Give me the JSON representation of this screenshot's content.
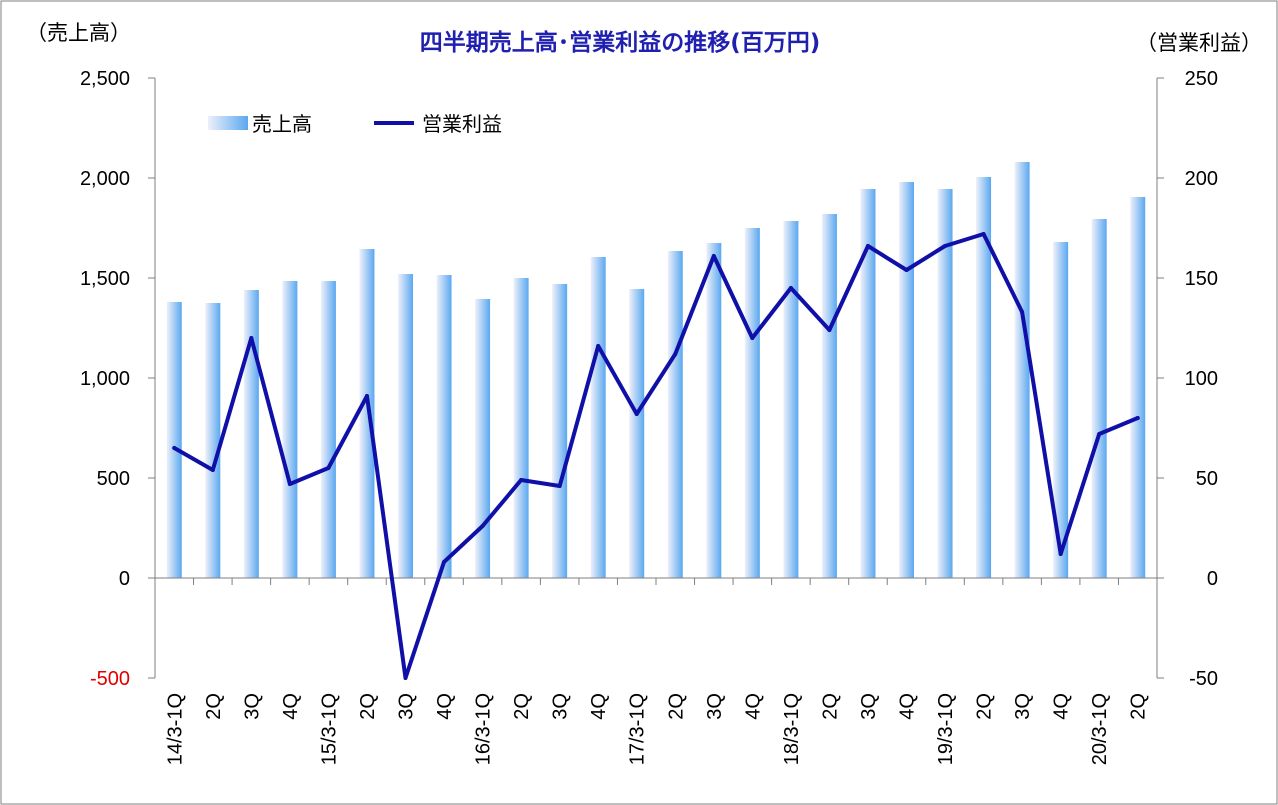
{
  "chart_data": {
    "type": "bar+line",
    "title": "四半期売上高･営業利益の推移(百万円)",
    "left_axis_unit": "（売上高）",
    "right_axis_unit": "（営業利益）",
    "left_axis": {
      "min": -500,
      "max": 2500,
      "step": 500,
      "tick_labels": [
        "-500",
        "0",
        "500",
        "1,000",
        "1,500",
        "2,000",
        "2,500"
      ]
    },
    "right_axis": {
      "min": -50,
      "max": 250,
      "step": 50,
      "tick_labels": [
        "-50",
        "0",
        "50",
        "100",
        "150",
        "200",
        "250"
      ]
    },
    "categories": [
      "14/3-1Q",
      "2Q",
      "3Q",
      "4Q",
      "15/3-1Q",
      "2Q",
      "3Q",
      "4Q",
      "16/3-1Q",
      "2Q",
      "3Q",
      "4Q",
      "17/3-1Q",
      "2Q",
      "3Q",
      "4Q",
      "18/3-1Q",
      "2Q",
      "3Q",
      "4Q",
      "19/3-1Q",
      "2Q",
      "3Q",
      "4Q",
      "20/3-1Q",
      "2Q"
    ],
    "legend_position": "top-left",
    "grid": false,
    "colors": {
      "bar_light": "#eef0fa",
      "bar_dark": "#5aa8f0",
      "line": "#1010a8",
      "negative_tick": "#e00000",
      "title": "#1f1fb0"
    },
    "series": [
      {
        "name": "売上高",
        "type": "bar",
        "axis": "left",
        "values": [
          1380,
          1375,
          1440,
          1485,
          1485,
          1645,
          1520,
          1515,
          1395,
          1500,
          1470,
          1605,
          1445,
          1635,
          1675,
          1750,
          1785,
          1820,
          1945,
          1980,
          1945,
          2005,
          2080,
          1680,
          1795,
          1905
        ]
      },
      {
        "name": "営業利益",
        "type": "line",
        "axis": "right",
        "values": [
          65,
          54,
          120,
          47,
          55,
          91,
          -50,
          8,
          26,
          49,
          46,
          116,
          82,
          112,
          161,
          120,
          145,
          124,
          166,
          154,
          166,
          172,
          133,
          12,
          72,
          80
        ]
      }
    ]
  }
}
